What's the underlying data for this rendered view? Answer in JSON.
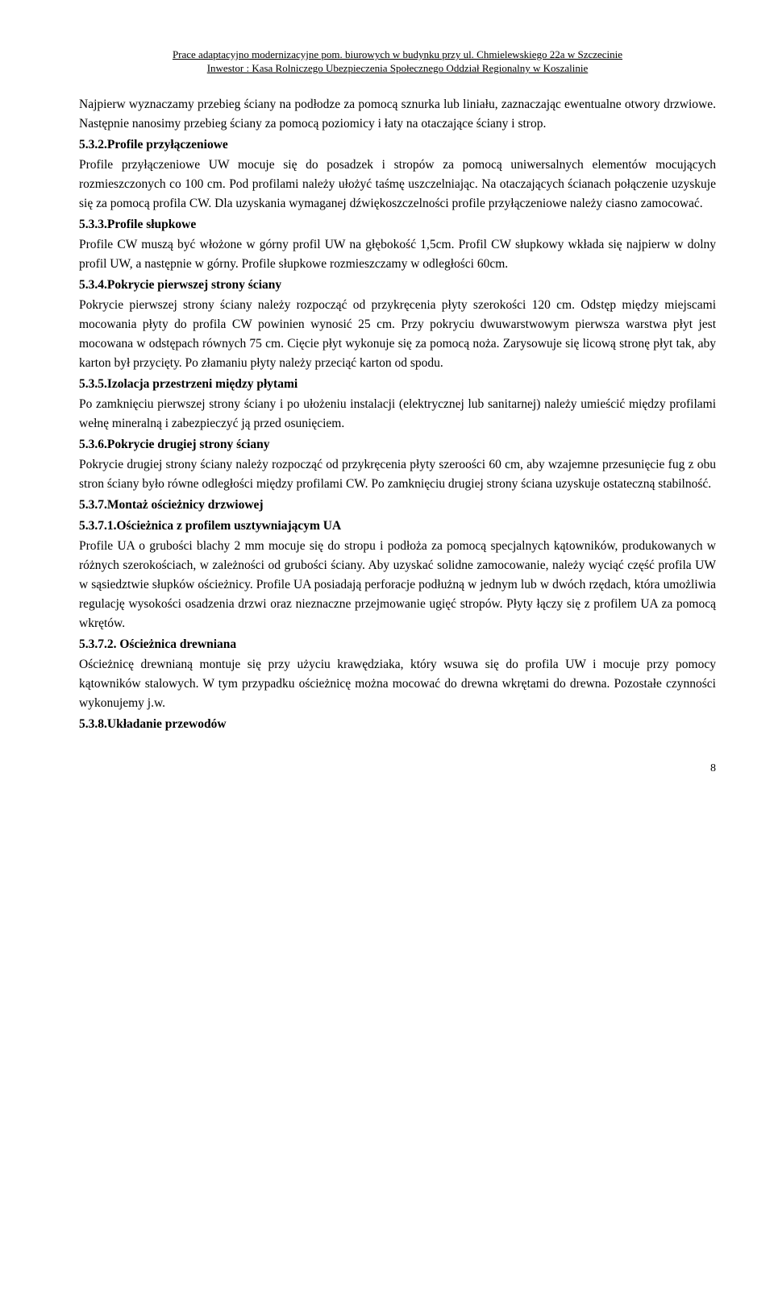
{
  "header": {
    "line1": "Prace adaptacyjno modernizacyjne pom. biurowych w budynku przy ul. Chmielewskiego 22a w Szczecinie",
    "line2": "Inwestor : Kasa Rolniczego Ubezpieczenia Społecznego Oddział Regionalny w Koszalinie"
  },
  "p_intro": "Najpierw wyznaczamy przebieg ściany na podłodze za pomocą sznurka lub liniału, zaznaczając ewentualne otwory drzwiowe. Następnie nanosimy przebieg ściany za pomocą poziomicy i łaty na otaczające ściany i strop.",
  "h532": "5.3.2.Profile przyłączeniowe",
  "p532": "Profile przyłączeniowe UW mocuje się do posadzek i stropów za pomocą uniwersalnych elementów mocujących rozmieszczonych co 100 cm. Pod profilami należy ułożyć taśmę uszczelniając. Na otaczających ścianach połączenie uzyskuje się za pomocą profila CW. Dla uzyskania wymaganej dźwiękoszczelności profile przyłączeniowe należy ciasno zamocować.",
  "h533": "5.3.3.Profile słupkowe",
  "p533": "Profile CW muszą być włożone w górny profil UW na głębokość 1,5cm. Profil CW słupkowy wkłada się najpierw w dolny profil UW, a następnie w górny. Profile słupkowe rozmieszczamy w odległości 60cm.",
  "h534": "5.3.4.Pokrycie pierwszej strony ściany",
  "p534": "Pokrycie pierwszej strony ściany należy rozpocząć od przykręcenia płyty szerokości 120 cm. Odstęp między miejscami mocowania płyty do profila CW powinien wynosić 25 cm. Przy pokryciu dwuwarstwowym pierwsza warstwa płyt jest mocowana w odstępach równych 75 cm. Cięcie płyt wykonuje się za pomocą noża. Zarysowuje się licową stronę płyt tak, aby karton był przycięty. Po złamaniu płyty należy przeciąć karton od spodu.",
  "h535": "5.3.5.Izolacja przestrzeni między płytami",
  "p535": "Po zamknięciu pierwszej strony ściany i po ułożeniu instalacji (elektrycznej lub sanitarnej) należy umieścić między profilami wełnę mineralną i zabezpieczyć ją przed osunięciem.",
  "h536": "5.3.6.Pokrycie drugiej strony ściany",
  "p536": "Pokrycie drugiej strony ściany należy rozpocząć od przykręcenia płyty szeroości 60 cm, aby wzajemne przesunięcie fug z obu stron ściany było równe odległości między profilami CW. Po zamknięciu drugiej strony ściana uzyskuje ostateczną stabilność.",
  "h537": "5.3.7.Montaż ościeżnicy drzwiowej",
  "h5371": "5.3.7.1.Ościeżnica z profilem usztywniającym UA",
  "p5371": "Profile UA o grubości blachy 2 mm mocuje się do stropu i podłoża za pomocą specjalnych kątowników, produkowanych w różnych szerokościach, w zależności od grubości ściany. Aby uzyskać solidne zamocowanie, należy wyciąć część profila UW w sąsiedztwie słupków ościeżnicy. Profile UA posiadają perforacje podłużną w jednym lub w dwóch rzędach, która umożliwia regulację wysokości osadzenia drzwi oraz nieznaczne przejmowanie ugięć stropów. Płyty łączy się z profilem UA za pomocą wkrętów.",
  "h5372": "5.3.7.2. Ościeżnica drewniana",
  "p5372": "Ościeżnicę drewnianą montuje się przy użyciu krawędziaka, który wsuwa się do profila UW i mocuje przy pomocy kątowników stalowych. W tym przypadku ościeżnicę można mocować do drewna wkrętami do drewna. Pozostałe czynności wykonujemy j.w.",
  "h538": "5.3.8.Układanie przewodów",
  "page": "8"
}
